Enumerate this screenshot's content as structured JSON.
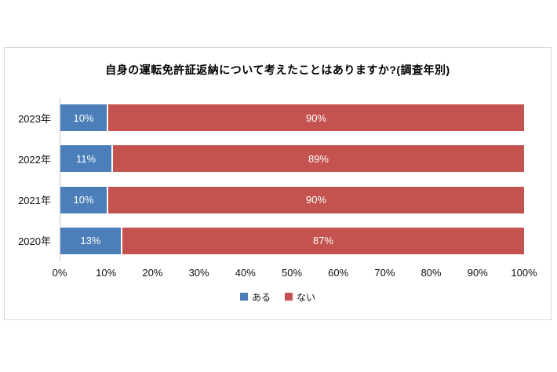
{
  "chart": {
    "frame_border_color": "#d9d9d9",
    "axis_line_color": "#c9c9c9",
    "background": "#ffffff",
    "bar_label_color": "#ffffff",
    "text_color": "#111111"
  },
  "chart_data": {
    "type": "bar",
    "orientation": "horizontal",
    "stacked": true,
    "title": "自身の運転免許証返納について考えたことはありますか?(調査年別)",
    "categories": [
      "2023年",
      "2022年",
      "2021年",
      "2020年"
    ],
    "series": [
      {
        "name": "ある",
        "color": "#4c7fba",
        "values": [
          10,
          11,
          10,
          13
        ],
        "labels": [
          "10%",
          "11%",
          "10%",
          "13%"
        ]
      },
      {
        "name": "ない",
        "color": "#c4524e",
        "values": [
          90,
          89,
          90,
          87
        ],
        "labels": [
          "90%",
          "89%",
          "90%",
          "87%"
        ]
      }
    ],
    "x_ticks": [
      "0%",
      "10%",
      "20%",
      "30%",
      "40%",
      "50%",
      "60%",
      "70%",
      "80%",
      "90%",
      "100%"
    ],
    "xlim": [
      0,
      100
    ],
    "grid": false,
    "legend_position": "bottom"
  }
}
